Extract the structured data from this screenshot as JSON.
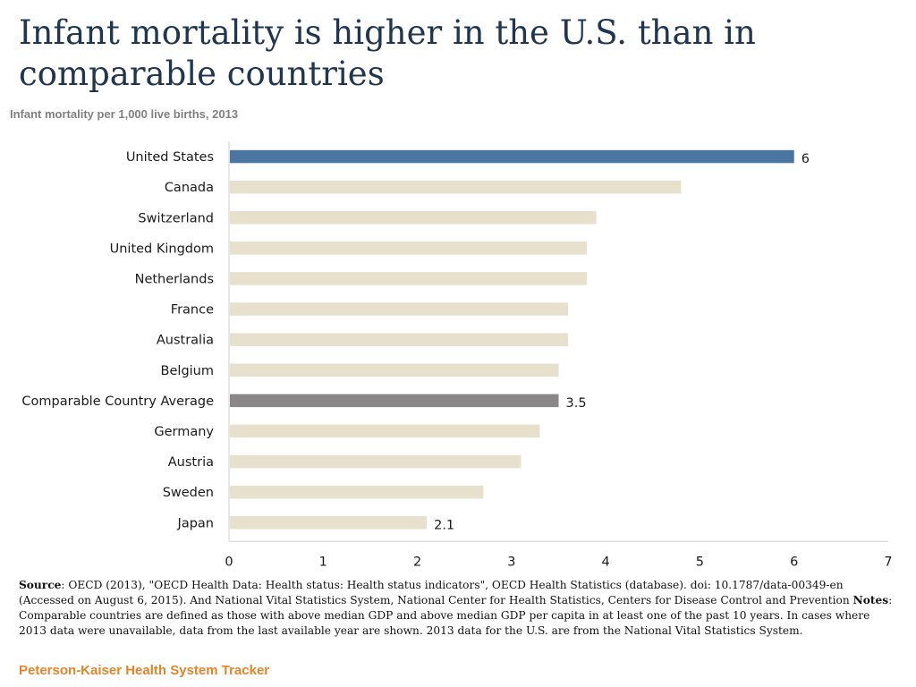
{
  "colors": {
    "title": "#1f3550",
    "highlight": "#4a76a1",
    "average": "#8a8789",
    "default_bar": "#e6e0cd",
    "brand": "#e6842a"
  },
  "header": {
    "title": "Infant mortality is higher in the U.S. than in comparable countries",
    "subtitle": "Infant mortality per 1,000 live births, 2013"
  },
  "chart_data": {
    "type": "bar",
    "orientation": "horizontal",
    "title": "Infant mortality is higher in the U.S. than in comparable countries",
    "subtitle": "Infant mortality per 1,000 live births, 2013",
    "categories": [
      "United States",
      "Canada",
      "Switzerland",
      "United Kingdom",
      "Netherlands",
      "France",
      "Australia",
      "Belgium",
      "Comparable Country Average",
      "Germany",
      "Austria",
      "Sweden",
      "Japan"
    ],
    "values": [
      6,
      4.8,
      3.9,
      3.8,
      3.8,
      3.6,
      3.6,
      3.5,
      3.5,
      3.3,
      3.1,
      2.7,
      2.1
    ],
    "highlight": [
      "United States"
    ],
    "average": [
      "Comparable Country Average"
    ],
    "data_labels": [
      {
        "category": "United States",
        "text": "6"
      },
      {
        "category": "Comparable Country Average",
        "text": "3.5"
      },
      {
        "category": "Japan",
        "text": "2.1"
      }
    ],
    "xlim": [
      0,
      7
    ],
    "xticks": [
      "0",
      "1",
      "2",
      "3",
      "4",
      "5",
      "6",
      "7"
    ],
    "grid": false,
    "xlabel": "",
    "ylabel": ""
  },
  "footer": {
    "source_label": "Source",
    "source_text": ": OECD (2013), \"OECD Health Data: Health status: Health status indicators\", OECD Health Statistics (database). doi: 10.1787/data-00349-en (Accessed on August 6, 2015).  And National Vital Statistics System, National Center for Health Statistics, Centers for Disease Control and Prevention ",
    "notes_label": "Notes",
    "notes_text": ": Comparable countries are defined as those with above median GDP and above median GDP per capita in at least one of the past 10 years. In cases where 2013 data were unavailable, data from the last available year are shown. 2013 data for the U.S. are from the National Vital Statistics System.",
    "brand": "Peterson-Kaiser Health System Tracker"
  }
}
